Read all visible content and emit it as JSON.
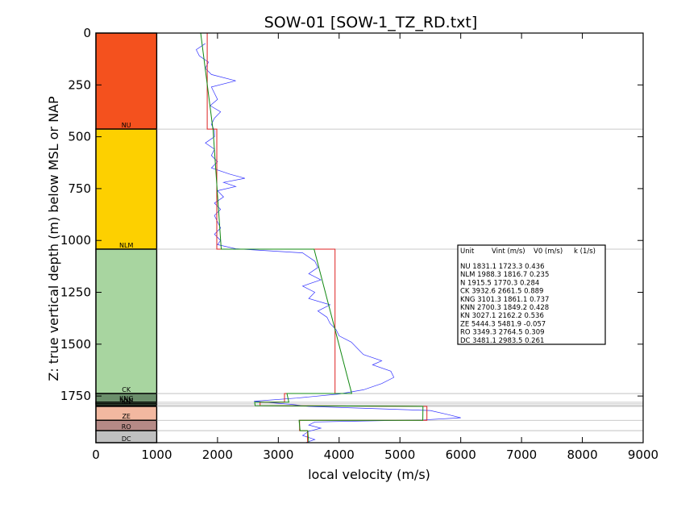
{
  "chart_data": {
    "type": "line",
    "title": "SOW-01 [SOW-1_TZ_RD.txt]",
    "xlabel": "local velocity (m/s)",
    "ylabel": "Z: true vertical depth (m) below MSL or NAP",
    "xlim": [
      0,
      9000
    ],
    "ylim": [
      1975,
      0
    ],
    "y_inverted": true,
    "xticks": [
      "0",
      "1000",
      "2000",
      "3000",
      "4000",
      "5000",
      "6000",
      "7000",
      "8000",
      "9000"
    ],
    "yticks": [
      "0",
      "250",
      "500",
      "750",
      "1000",
      "1250",
      "1500",
      "1750"
    ],
    "grid": false,
    "colors": {
      "NU": "#f4511e",
      "NLM": "#fdd000",
      "N": "#a8d5a0",
      "CK": "#a8d5a0",
      "KNG": "#6b8f6b",
      "KNN": "#6b8f6b",
      "KN": "#6b8f6b",
      "ZE": "#f2b8a0",
      "RO": "#b58a86",
      "DC": "#c0c0c0",
      "log": "#3333ff",
      "interval": "#dd2222",
      "linear": "#118811"
    },
    "units": [
      {
        "name": "NU",
        "top": 0,
        "base": 463,
        "label_shown": "NU",
        "color": "#f4511e"
      },
      {
        "name": "NLM",
        "top": 463,
        "base": 1042,
        "label_shown": "NLM",
        "color": "#fdd000"
      },
      {
        "name": "CK",
        "top": 1042,
        "base": 1738,
        "label_shown": "CK",
        "color": "#a8d5a0"
      },
      {
        "name": "KNG",
        "top": 1738,
        "base": 1780,
        "label_shown": "KNG",
        "color": "#6b8f6b"
      },
      {
        "name": "KNN",
        "top": 1780,
        "base": 1788,
        "label_shown": "KNN",
        "color": "#6b8f6b"
      },
      {
        "name": "KN",
        "top": 1788,
        "base": 1796,
        "label_shown": "KN",
        "color": "#6b8f6b"
      },
      {
        "name": "ZE",
        "top": 1800,
        "base": 1867,
        "label_shown": "ZE",
        "color": "#f2b8a0"
      },
      {
        "name": "RO",
        "top": 1867,
        "base": 1917,
        "label_shown": "RO",
        "color": "#b58a86"
      },
      {
        "name": "DC",
        "top": 1917,
        "base": 1975,
        "label_shown": "DC",
        "color": "#c0c0c0"
      }
    ],
    "horizons": [
      463,
      1042,
      1738,
      1780,
      1788,
      1796,
      1800,
      1867,
      1917,
      1975
    ],
    "interval_velocity": [
      {
        "unit": "NU",
        "top": 0,
        "base": 463,
        "v": 1831.1
      },
      {
        "unit": "NLM",
        "top": 463,
        "base": 1042,
        "v": 1988.3
      },
      {
        "unit": "CK",
        "top": 1042,
        "base": 1738,
        "v": 3932.6
      },
      {
        "unit": "KNG",
        "top": 1738,
        "base": 1780,
        "v": 3101.3
      },
      {
        "unit": "KNN",
        "top": 1780,
        "base": 1796,
        "v": 2700.3
      },
      {
        "unit": "ZE",
        "top": 1800,
        "base": 1867,
        "v": 5444.3
      },
      {
        "unit": "RO",
        "top": 1867,
        "base": 1917,
        "v": 3349.3
      },
      {
        "unit": "DC",
        "top": 1917,
        "base": 1975,
        "v": 3481.1
      }
    ],
    "linear_fit": [
      {
        "unit": "NU",
        "top": 0,
        "base": 463,
        "v0": 1723.3,
        "k": 0.436
      },
      {
        "unit": "NLM",
        "top": 463,
        "base": 1042,
        "v0": 1816.7,
        "k": 0.235
      },
      {
        "unit": "CK",
        "top": 1042,
        "base": 1738,
        "v0": 2661.5,
        "k": 0.889
      },
      {
        "unit": "KNG",
        "top": 1738,
        "base": 1780,
        "v0": 1861.1,
        "k": 0.737
      },
      {
        "unit": "KNN",
        "top": 1780,
        "base": 1796,
        "v0": 1849.2,
        "k": 0.428
      },
      {
        "unit": "ZE",
        "top": 1800,
        "base": 1867,
        "v0": 5481.9,
        "k": -0.057
      },
      {
        "unit": "RO",
        "top": 1867,
        "base": 1917,
        "v0": 2764.5,
        "k": 0.309
      },
      {
        "unit": "DC",
        "top": 1917,
        "base": 1975,
        "v0": 2983.5,
        "k": 0.261
      }
    ],
    "log_profile": [
      [
        50,
        1800
      ],
      [
        80,
        1650
      ],
      [
        110,
        1700
      ],
      [
        140,
        1850
      ],
      [
        170,
        1800
      ],
      [
        200,
        1900
      ],
      [
        230,
        2300
      ],
      [
        260,
        1900
      ],
      [
        290,
        1950
      ],
      [
        320,
        2000
      ],
      [
        350,
        1880
      ],
      [
        380,
        2050
      ],
      [
        410,
        1950
      ],
      [
        440,
        1900
      ],
      [
        470,
        1950
      ],
      [
        500,
        1950
      ],
      [
        530,
        1800
      ],
      [
        560,
        1950
      ],
      [
        590,
        1900
      ],
      [
        620,
        2000
      ],
      [
        650,
        1900
      ],
      [
        680,
        2200
      ],
      [
        700,
        2450
      ],
      [
        720,
        2100
      ],
      [
        740,
        2300
      ],
      [
        760,
        2000
      ],
      [
        790,
        2100
      ],
      [
        820,
        1950
      ],
      [
        850,
        2050
      ],
      [
        880,
        1950
      ],
      [
        910,
        2000
      ],
      [
        940,
        2050
      ],
      [
        970,
        1950
      ],
      [
        1000,
        2050
      ],
      [
        1020,
        2000
      ],
      [
        1040,
        2300
      ],
      [
        1060,
        3400
      ],
      [
        1080,
        3500
      ],
      [
        1100,
        3600
      ],
      [
        1130,
        3650
      ],
      [
        1160,
        3500
      ],
      [
        1190,
        3700
      ],
      [
        1220,
        3400
      ],
      [
        1250,
        3600
      ],
      [
        1280,
        3500
      ],
      [
        1310,
        3850
      ],
      [
        1340,
        3650
      ],
      [
        1370,
        3800
      ],
      [
        1400,
        3850
      ],
      [
        1430,
        3950
      ],
      [
        1460,
        4000
      ],
      [
        1490,
        4200
      ],
      [
        1520,
        4300
      ],
      [
        1550,
        4400
      ],
      [
        1580,
        4700
      ],
      [
        1600,
        4550
      ],
      [
        1630,
        4850
      ],
      [
        1660,
        4900
      ],
      [
        1690,
        4700
      ],
      [
        1720,
        4400
      ],
      [
        1740,
        4000
      ],
      [
        1760,
        3300
      ],
      [
        1775,
        2600
      ],
      [
        1790,
        3200
      ],
      [
        1800,
        3500
      ],
      [
        1820,
        5500
      ],
      [
        1840,
        5800
      ],
      [
        1855,
        6000
      ],
      [
        1865,
        5400
      ],
      [
        1875,
        3600
      ],
      [
        1890,
        3500
      ],
      [
        1905,
        3700
      ],
      [
        1920,
        3500
      ],
      [
        1940,
        3400
      ],
      [
        1960,
        3600
      ],
      [
        1975,
        3450
      ]
    ],
    "table": {
      "headers": [
        "Unit",
        "Vint (m/s)",
        "V0 (m/s)",
        "k (1/s)"
      ],
      "rows": [
        "NU      1831.1  1723.3  0.436",
        "NLM      1988.3  1816.7  0.235",
        "N       1915.5  1770.3  0.284",
        "CK      3932.6  2661.5  0.889",
        "KNG      3101.3  1861.1  0.737",
        "KNN      2700.3  1849.2  0.428",
        "KN      3027.1  2162.2  0.536",
        "ZE      5444.3  5481.9  -0.057",
        "RO      3349.3  2764.5  0.309",
        "DC      3481.1  2983.5  0.261"
      ]
    }
  }
}
